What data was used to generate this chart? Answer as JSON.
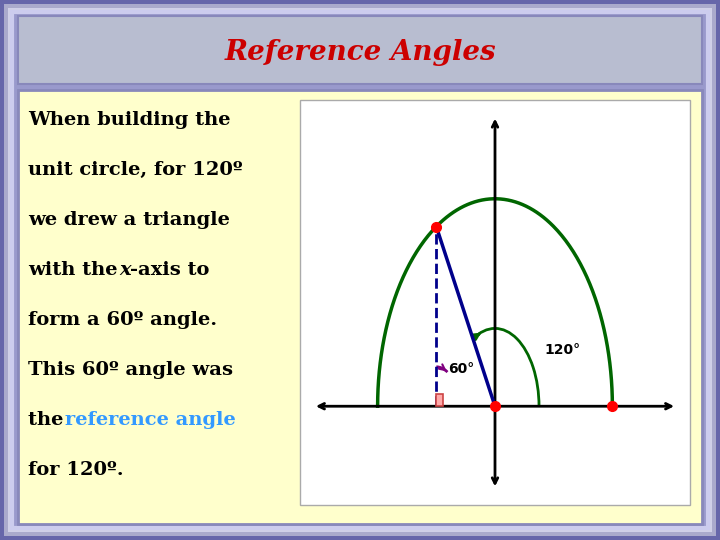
{
  "title": "Reference Angles",
  "title_color": "#cc0000",
  "title_bg": "#b8bdd0",
  "slide_bg": "#9999cc",
  "content_bg": "#ffffcc",
  "diagram_bg": "#ffffff",
  "text_lines": [
    "When building the",
    "unit circle, for 120º",
    "we drew a triangle",
    "with the x-axis to",
    "form a 60º angle.",
    "This 60º angle was",
    "the reference angle",
    "for 120º."
  ],
  "ref_angle_color": "#3399ff",
  "text_color": "#000000",
  "circle_color": "#006600",
  "hyp_color": "#00008b",
  "dashed_color": "#00008b",
  "arc_60_color": "#800080",
  "arc_120_color": "#006600",
  "right_angle_color": "#cc4444",
  "right_angle_fill": "#ffaaaa"
}
